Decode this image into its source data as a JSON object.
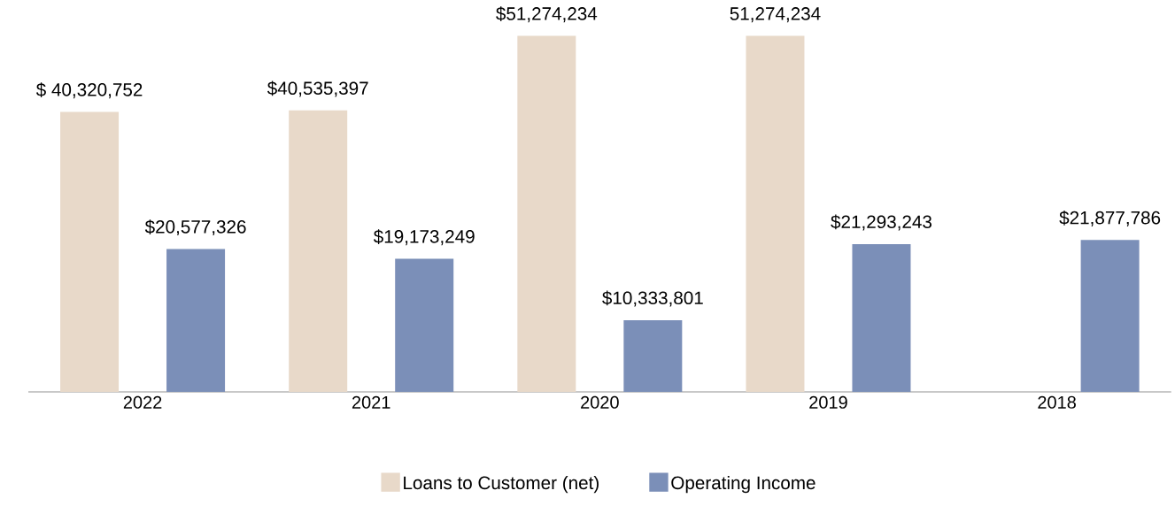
{
  "chart_data": {
    "type": "bar",
    "categories": [
      "2022",
      "2021",
      "2020",
      "2019",
      "2018"
    ],
    "series": [
      {
        "name": "Loans to Customer (net)",
        "color": "#e8d9c9",
        "values": [
          40320752,
          40535397,
          51274234,
          51274234,
          null
        ],
        "value_labels": [
          "$ 40,320,752",
          "$40,535,397",
          "$51,274,234",
          "51,274,234",
          null
        ]
      },
      {
        "name": "Operating Income",
        "color": "#7b8fb8",
        "values": [
          20577326,
          19173249,
          10333801,
          21293243,
          21877786
        ],
        "value_labels": [
          "$20,577,326",
          "$19,173,249",
          "$10,333,801",
          "$21,293,243",
          "$21,877,786"
        ]
      }
    ],
    "legend": "bottom"
  }
}
